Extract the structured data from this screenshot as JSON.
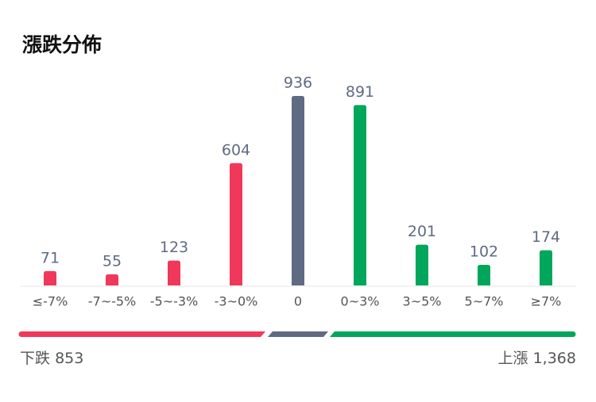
{
  "chart_data": {
    "type": "bar",
    "title": "漲跌分佈",
    "categories": [
      "≤-7%",
      "-7~-5%",
      "-5~-3%",
      "-3~0%",
      "0",
      "0~3%",
      "3~5%",
      "5~7%",
      "≥7%"
    ],
    "values": [
      71,
      55,
      123,
      604,
      936,
      891,
      201,
      102,
      174
    ],
    "colors": [
      "#f0385a",
      "#f0385a",
      "#f0385a",
      "#f0385a",
      "#5f6b82",
      "#00a65a",
      "#00a65a",
      "#00a65a",
      "#00a65a"
    ],
    "ylim": [
      0,
      936
    ],
    "grid": false
  },
  "summary": {
    "down": {
      "label": "下跌",
      "value": 853
    },
    "up": {
      "label": "上漲",
      "value": 1368,
      "value_label": "1,368"
    }
  }
}
